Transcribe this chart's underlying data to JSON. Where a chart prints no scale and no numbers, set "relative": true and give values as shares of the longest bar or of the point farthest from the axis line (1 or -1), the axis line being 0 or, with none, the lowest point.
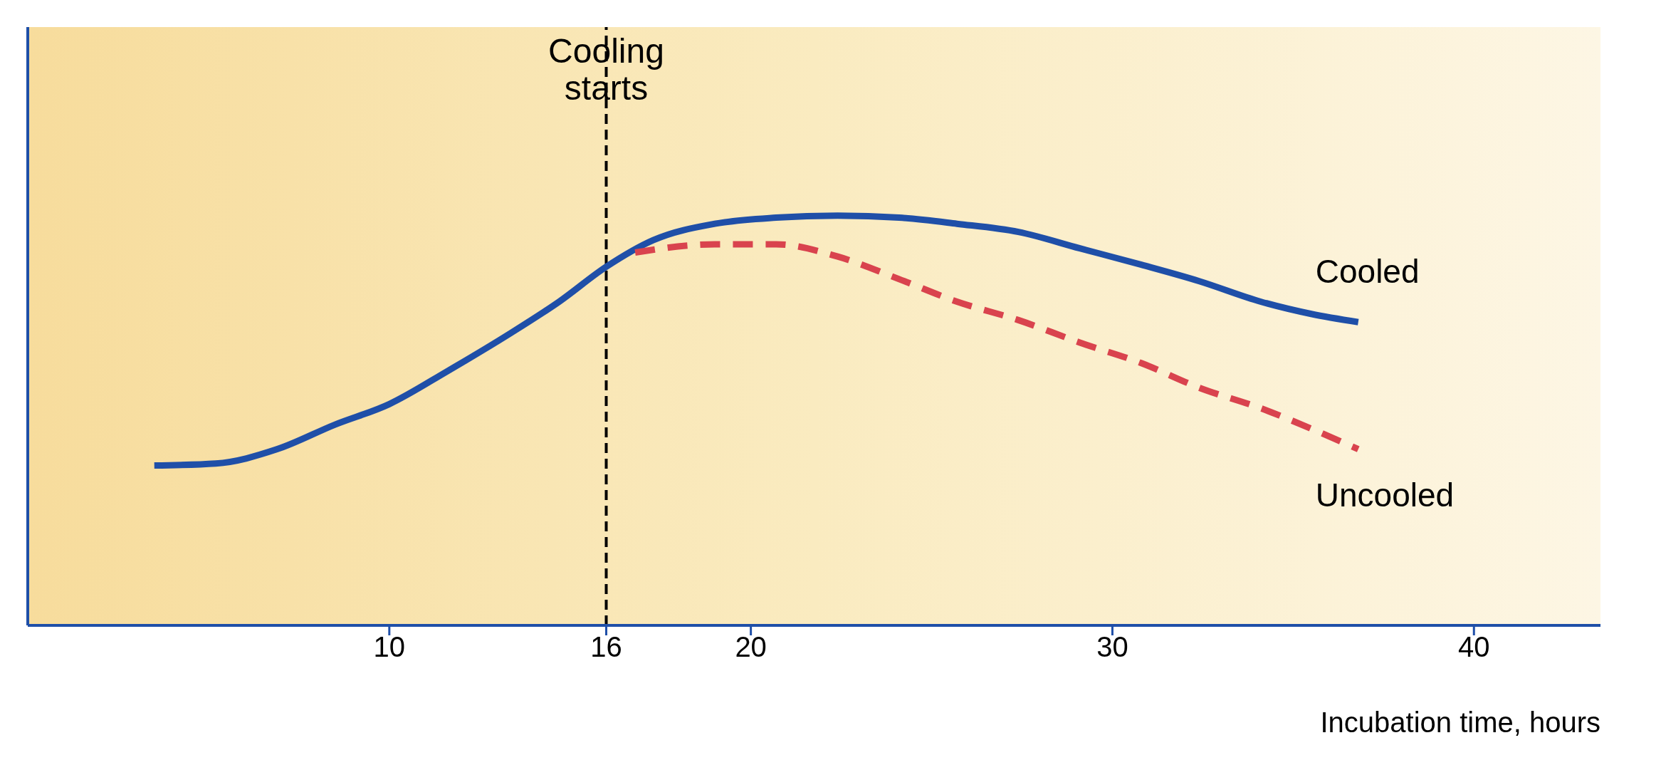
{
  "chart_data": {
    "type": "line",
    "relative": true,
    "xlabel": "Incubation time, hours",
    "xlim": [
      0,
      43.5
    ],
    "xticks": [
      10,
      16,
      20,
      30,
      40
    ],
    "legend": false,
    "grid": false,
    "marker": "none",
    "series": [
      {
        "name": "Cooled",
        "color": "#1f4fa8",
        "line_style": "solid",
        "x": [
          3.5,
          5.2,
          6.9,
          8.5,
          10,
          11.6,
          13.3,
          14.7,
          16,
          17.3,
          19,
          20.7,
          22.4,
          24.1,
          25.7,
          27.4,
          29.1,
          30.8,
          32.4,
          34.1,
          35.5,
          36.8
        ],
        "values": [
          0.39,
          0.395,
          0.43,
          0.49,
          0.54,
          0.62,
          0.71,
          0.79,
          0.875,
          0.94,
          0.98,
          0.995,
          1,
          0.995,
          0.98,
          0.96,
          0.92,
          0.88,
          0.84,
          0.79,
          0.76,
          0.74
        ]
      },
      {
        "name": "Uncooled",
        "color": "#d9434e",
        "line_style": "dashed",
        "x": [
          16.8,
          19,
          20.7,
          22.4,
          24.1,
          25.7,
          27.4,
          29.1,
          30.8,
          32.4,
          34.1,
          35.5,
          36.8
        ],
        "values": [
          0.91,
          0.93,
          0.93,
          0.9,
          0.845,
          0.79,
          0.745,
          0.69,
          0.64,
          0.58,
          0.53,
          0.48,
          0.43
        ]
      }
    ],
    "ref_lines": [
      {
        "axis": "x",
        "value": 16,
        "label": "Cooling starts",
        "color": "#000000",
        "line_style": "dashed"
      }
    ]
  }
}
